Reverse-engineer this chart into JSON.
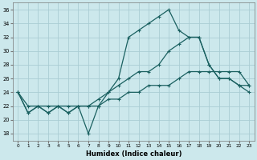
{
  "xlabel": "Humidex (Indice chaleur)",
  "background_color": "#cce8ec",
  "grid_color": "#aacdd4",
  "line_color": "#1a6060",
  "xlim": [
    -0.5,
    23.5
  ],
  "ylim": [
    17,
    37
  ],
  "xticks": [
    0,
    1,
    2,
    3,
    4,
    5,
    6,
    7,
    8,
    9,
    10,
    11,
    12,
    13,
    14,
    15,
    16,
    17,
    18,
    19,
    20,
    21,
    22,
    23
  ],
  "yticks": [
    18,
    20,
    22,
    24,
    26,
    28,
    30,
    32,
    34,
    36
  ],
  "line1_x": [
    0,
    1,
    2,
    3,
    4,
    5,
    6,
    7,
    8,
    9,
    10,
    11,
    12,
    13,
    14,
    15,
    16,
    17,
    18,
    19,
    20,
    21,
    22,
    23
  ],
  "line1_y": [
    24,
    21,
    22,
    21,
    22,
    21,
    22,
    18,
    22,
    24,
    26,
    32,
    33,
    34,
    35,
    36,
    33,
    32,
    32,
    28,
    26,
    26,
    25,
    24
  ],
  "line2_x": [
    0,
    1,
    2,
    3,
    4,
    5,
    6,
    7,
    8,
    9,
    10,
    11,
    12,
    13,
    14,
    15,
    16,
    17,
    18,
    19,
    20,
    21,
    22,
    23
  ],
  "line2_y": [
    24,
    22,
    22,
    22,
    22,
    22,
    22,
    22,
    23,
    24,
    25,
    26,
    27,
    27,
    28,
    30,
    31,
    32,
    32,
    28,
    26,
    26,
    25,
    25
  ],
  "line3_x": [
    0,
    1,
    2,
    3,
    4,
    5,
    6,
    7,
    8,
    9,
    10,
    11,
    12,
    13,
    14,
    15,
    16,
    17,
    18,
    19,
    20,
    21,
    22,
    23
  ],
  "line3_y": [
    24,
    21,
    22,
    21,
    22,
    21,
    22,
    22,
    22,
    23,
    23,
    24,
    24,
    25,
    25,
    25,
    26,
    27,
    27,
    27,
    27,
    27,
    27,
    25
  ],
  "marker": "+",
  "markersize": 3.5,
  "linewidth": 0.9
}
